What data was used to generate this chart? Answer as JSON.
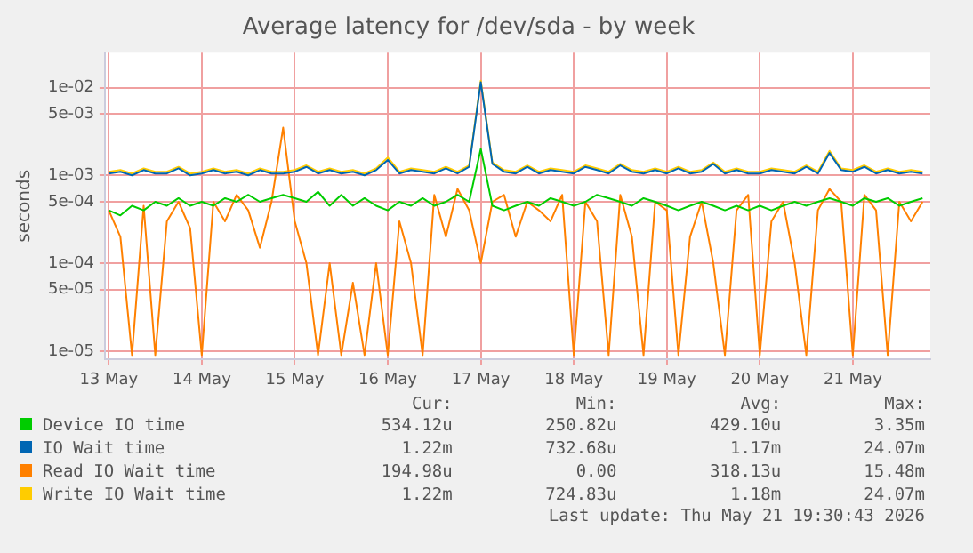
{
  "chart_data": {
    "type": "line",
    "title": "Average latency for /dev/sda - by week",
    "ylabel": "seconds",
    "x": [
      "2026-05-13T00:00",
      "2026-05-13T03:00",
      "2026-05-13T06:00",
      "2026-05-13T09:00",
      "2026-05-13T12:00",
      "2026-05-13T15:00",
      "2026-05-13T18:00",
      "2026-05-13T21:00",
      "2026-05-14T00:00",
      "2026-05-14T03:00",
      "2026-05-14T06:00",
      "2026-05-14T09:00",
      "2026-05-14T12:00",
      "2026-05-14T15:00",
      "2026-05-14T18:00",
      "2026-05-14T21:00",
      "2026-05-15T00:00",
      "2026-05-15T03:00",
      "2026-05-15T06:00",
      "2026-05-15T09:00",
      "2026-05-15T12:00",
      "2026-05-15T15:00",
      "2026-05-15T18:00",
      "2026-05-15T21:00",
      "2026-05-16T00:00",
      "2026-05-16T03:00",
      "2026-05-16T06:00",
      "2026-05-16T09:00",
      "2026-05-16T12:00",
      "2026-05-16T15:00",
      "2026-05-16T18:00",
      "2026-05-16T21:00",
      "2026-05-17T00:00",
      "2026-05-17T03:00",
      "2026-05-17T06:00",
      "2026-05-17T09:00",
      "2026-05-17T12:00",
      "2026-05-17T15:00",
      "2026-05-17T18:00",
      "2026-05-17T21:00",
      "2026-05-18T00:00",
      "2026-05-18T03:00",
      "2026-05-18T06:00",
      "2026-05-18T09:00",
      "2026-05-18T12:00",
      "2026-05-18T15:00",
      "2026-05-18T18:00",
      "2026-05-18T21:00",
      "2026-05-19T00:00",
      "2026-05-19T03:00",
      "2026-05-19T06:00",
      "2026-05-19T09:00",
      "2026-05-19T12:00",
      "2026-05-19T15:00",
      "2026-05-19T18:00",
      "2026-05-19T21:00",
      "2026-05-20T00:00",
      "2026-05-20T03:00",
      "2026-05-20T06:00",
      "2026-05-20T09:00",
      "2026-05-20T12:00",
      "2026-05-20T15:00",
      "2026-05-20T18:00",
      "2026-05-20T21:00",
      "2026-05-21T00:00",
      "2026-05-21T03:00",
      "2026-05-21T06:00",
      "2026-05-21T09:00",
      "2026-05-21T12:00",
      "2026-05-21T15:00",
      "2026-05-21T18:00"
    ],
    "series": [
      {
        "name": "Device IO time",
        "color": "#00cc00",
        "values": [
          0.0004,
          0.00035,
          0.00045,
          0.0004,
          0.0005,
          0.00045,
          0.00055,
          0.00045,
          0.0005,
          0.00045,
          0.00055,
          0.0005,
          0.0006,
          0.0005,
          0.00055,
          0.0006,
          0.00055,
          0.0005,
          0.00065,
          0.00045,
          0.0006,
          0.00045,
          0.00055,
          0.00045,
          0.0004,
          0.0005,
          0.00045,
          0.00055,
          0.00045,
          0.0005,
          0.0006,
          0.0005,
          0.002,
          0.00045,
          0.0004,
          0.00045,
          0.0005,
          0.00045,
          0.00055,
          0.0005,
          0.00045,
          0.0005,
          0.0006,
          0.00055,
          0.0005,
          0.00045,
          0.00055,
          0.0005,
          0.00045,
          0.0004,
          0.00045,
          0.0005,
          0.00045,
          0.0004,
          0.00045,
          0.0004,
          0.00045,
          0.0004,
          0.00045,
          0.0005,
          0.00045,
          0.0005,
          0.00055,
          0.0005,
          0.00045,
          0.00055,
          0.0005,
          0.00055,
          0.00045,
          0.0005,
          0.00055
        ]
      },
      {
        "name": "IO Wait time",
        "color": "#0066b3",
        "values": [
          0.00105,
          0.0011,
          0.001,
          0.00115,
          0.00105,
          0.00105,
          0.0012,
          0.001,
          0.00105,
          0.00115,
          0.00105,
          0.0011,
          0.001,
          0.00115,
          0.00105,
          0.00105,
          0.0011,
          0.00125,
          0.00105,
          0.00115,
          0.00105,
          0.0011,
          0.001,
          0.00115,
          0.0015,
          0.00105,
          0.00115,
          0.0011,
          0.00105,
          0.0012,
          0.00105,
          0.00125,
          0.0115,
          0.00135,
          0.0011,
          0.00105,
          0.00125,
          0.00105,
          0.00115,
          0.0011,
          0.00105,
          0.00125,
          0.00115,
          0.00105,
          0.0013,
          0.0011,
          0.00105,
          0.00115,
          0.00105,
          0.0012,
          0.00105,
          0.0011,
          0.00135,
          0.00105,
          0.00115,
          0.00105,
          0.00105,
          0.00115,
          0.0011,
          0.00105,
          0.00125,
          0.00105,
          0.0018,
          0.00115,
          0.0011,
          0.00125,
          0.00105,
          0.00115,
          0.00105,
          0.0011,
          0.00105
        ]
      },
      {
        "name": "Read IO Wait time",
        "color": "#ff8000",
        "values": [
          0.0004,
          0.0002,
          9e-06,
          0.00045,
          9e-06,
          0.0003,
          0.0005,
          0.00025,
          9e-06,
          0.0005,
          0.0003,
          0.0006,
          0.0004,
          0.00015,
          0.0005,
          0.0035,
          0.0003,
          0.0001,
          9e-06,
          0.0001,
          9e-06,
          6e-05,
          9e-06,
          0.0001,
          9e-06,
          0.0003,
          0.0001,
          9e-06,
          0.0006,
          0.0002,
          0.0007,
          0.0004,
          0.0001,
          0.0005,
          0.0006,
          0.0002,
          0.0005,
          0.0004,
          0.0003,
          0.0006,
          9e-06,
          0.0005,
          0.0003,
          9e-06,
          0.0006,
          0.0002,
          9e-06,
          0.0005,
          0.0004,
          9e-06,
          0.0002,
          0.0005,
          0.0001,
          9e-06,
          0.0004,
          0.0006,
          9e-06,
          0.0003,
          0.0005,
          0.0001,
          9e-06,
          0.0004,
          0.0007,
          0.0005,
          9e-06,
          0.0006,
          0.0004,
          9e-06,
          0.0005,
          0.0003,
          0.0005
        ]
      },
      {
        "name": "Write IO Wait time",
        "color": "#ffcc00",
        "values": [
          0.0011,
          0.00115,
          0.00105,
          0.0012,
          0.0011,
          0.0011,
          0.00125,
          0.00105,
          0.0011,
          0.0012,
          0.0011,
          0.00115,
          0.00105,
          0.0012,
          0.0011,
          0.0011,
          0.00115,
          0.0013,
          0.0011,
          0.0012,
          0.0011,
          0.00115,
          0.00105,
          0.0012,
          0.0016,
          0.0011,
          0.0012,
          0.00115,
          0.0011,
          0.00125,
          0.0011,
          0.0013,
          0.012,
          0.0014,
          0.00115,
          0.0011,
          0.0013,
          0.0011,
          0.0012,
          0.00115,
          0.0011,
          0.0013,
          0.0012,
          0.0011,
          0.00135,
          0.00115,
          0.0011,
          0.0012,
          0.0011,
          0.00125,
          0.0011,
          0.00115,
          0.0014,
          0.0011,
          0.0012,
          0.0011,
          0.0011,
          0.0012,
          0.00115,
          0.0011,
          0.0013,
          0.0011,
          0.0019,
          0.0012,
          0.00115,
          0.0013,
          0.0011,
          0.0012,
          0.0011,
          0.00115,
          0.0011
        ]
      }
    ],
    "xlim": [
      "2026-05-12T23:00",
      "2026-05-21T20:00"
    ],
    "xticks": [
      {
        "value": "2026-05-13T00:00",
        "label": "13 May"
      },
      {
        "value": "2026-05-14T00:00",
        "label": "14 May"
      },
      {
        "value": "2026-05-15T00:00",
        "label": "15 May"
      },
      {
        "value": "2026-05-16T00:00",
        "label": "16 May"
      },
      {
        "value": "2026-05-17T00:00",
        "label": "17 May"
      },
      {
        "value": "2026-05-18T00:00",
        "label": "18 May"
      },
      {
        "value": "2026-05-19T00:00",
        "label": "19 May"
      },
      {
        "value": "2026-05-20T00:00",
        "label": "20 May"
      },
      {
        "value": "2026-05-21T00:00",
        "label": "21 May"
      }
    ],
    "ylim": [
      8e-06,
      0.025
    ],
    "yticks": [
      {
        "value": 1e-05,
        "label": "1e-05"
      },
      {
        "value": 5e-05,
        "label": "5e-05"
      },
      {
        "value": 0.0001,
        "label": "1e-04"
      },
      {
        "value": 0.0005,
        "label": "5e-04"
      },
      {
        "value": 0.001,
        "label": "1e-03"
      },
      {
        "value": 0.005,
        "label": "5e-03"
      },
      {
        "value": 0.01,
        "label": "1e-02"
      }
    ],
    "log": true,
    "grid": true,
    "legend": "bottom",
    "marker": "none",
    "line_style": "solid",
    "annotations": [
      "Cur:",
      "Min:",
      "Avg:",
      "Max:",
      "534.12u",
      "250.82u",
      "429.10u",
      "3.35m",
      "1.22m",
      "732.68u",
      "1.17m",
      "24.07m",
      "194.98u",
      "0.00",
      "318.13u",
      "15.48m",
      "1.22m",
      "724.83u",
      "1.18m",
      "24.07m",
      "Last update: Thu May 21 19:30:43 2026"
    ]
  }
}
